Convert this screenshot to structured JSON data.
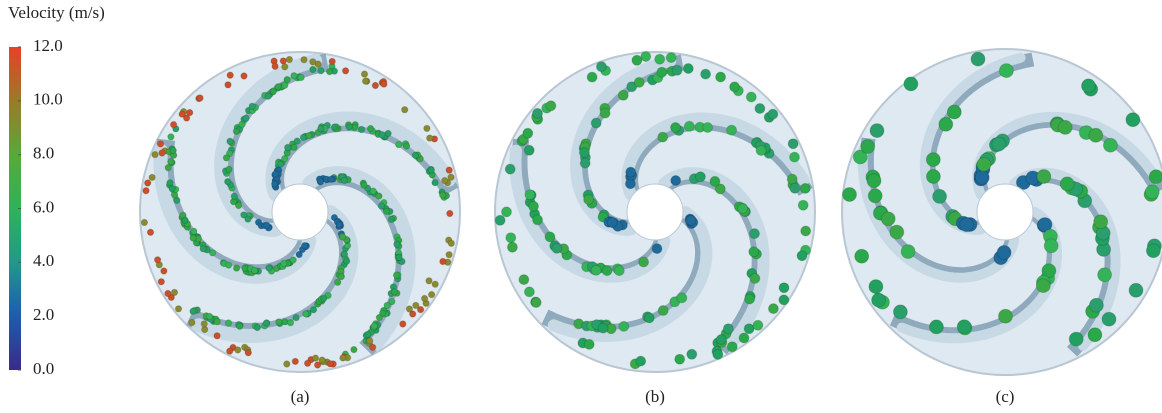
{
  "colorbar": {
    "title": "Velocity (m/s)",
    "range": [
      0,
      12
    ],
    "ticks": [
      {
        "value": 0,
        "label": "0.0"
      },
      {
        "value": 2,
        "label": "2.0"
      },
      {
        "value": 4,
        "label": "4.0"
      },
      {
        "value": 6,
        "label": "6.0"
      },
      {
        "value": 8,
        "label": "8.0"
      },
      {
        "value": 10,
        "label": "10.0"
      },
      {
        "value": 12,
        "label": "12.0"
      }
    ],
    "colors": [
      "#3a2a8c",
      "#1e5bb0",
      "#1f9a8a",
      "#2db35a",
      "#5aa83a",
      "#9a7a2a",
      "#e8402a"
    ]
  },
  "panels": [
    {
      "label": "(a)"
    },
    {
      "label": "(b)"
    },
    {
      "label": "(c)"
    }
  ]
}
